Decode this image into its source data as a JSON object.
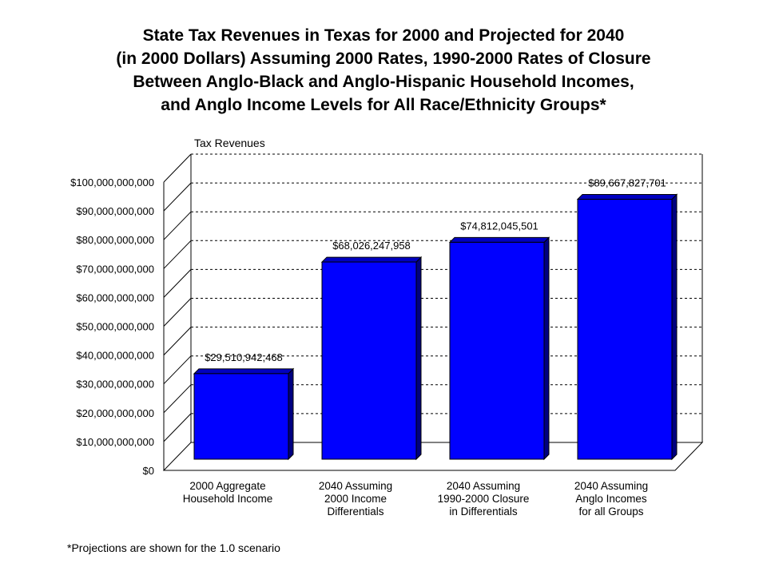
{
  "chart_data": {
    "type": "bar",
    "title": [
      "State Tax Revenues in Texas for 2000 and Projected for 2040",
      "(in 2000 Dollars) Assuming 2000 Rates, 1990-2000 Rates of Closure",
      "Between Anglo-Black and Anglo-Hispanic Household Incomes,",
      "and Anglo Income Levels for All Race/Ethnicity Groups*"
    ],
    "ylabel": "Tax Revenues",
    "xlabel": "",
    "ylim": [
      0,
      100000000000
    ],
    "y_tick_values": [
      0,
      10000000000,
      20000000000,
      30000000000,
      40000000000,
      50000000000,
      60000000000,
      70000000000,
      80000000000,
      90000000000,
      100000000000
    ],
    "y_tick_labels": [
      "$0",
      "$10,000,000,000",
      "$20,000,000,000",
      "$30,000,000,000",
      "$40,000,000,000",
      "$50,000,000,000",
      "$60,000,000,000",
      "$70,000,000,000",
      "$80,000,000,000",
      "$90,000,000,000",
      "$100,000,000,000"
    ],
    "categories": [
      [
        "2000 Aggregate",
        "Household Income"
      ],
      [
        "2040 Assuming",
        "2000 Income",
        "Differentials"
      ],
      [
        "2040 Assuming",
        "1990-2000 Closure",
        "in Differentials"
      ],
      [
        "2040 Assuming",
        "Anglo Incomes",
        "for all Groups"
      ]
    ],
    "values": [
      29510942468,
      68026247958,
      74812045501,
      89667827701
    ],
    "data_labels": [
      "$29,510,942,468",
      "$68,026,247,958",
      "$74,812,045,501",
      "$89,667,827,701"
    ],
    "grid": true,
    "legend": "none",
    "colors": {
      "bar_front": "#0000ff",
      "bar_side": "#000080",
      "bar_top": "#0000c0",
      "gridline": "#000000"
    }
  },
  "footnote": "*Projections are shown for the 1.0 scenario"
}
